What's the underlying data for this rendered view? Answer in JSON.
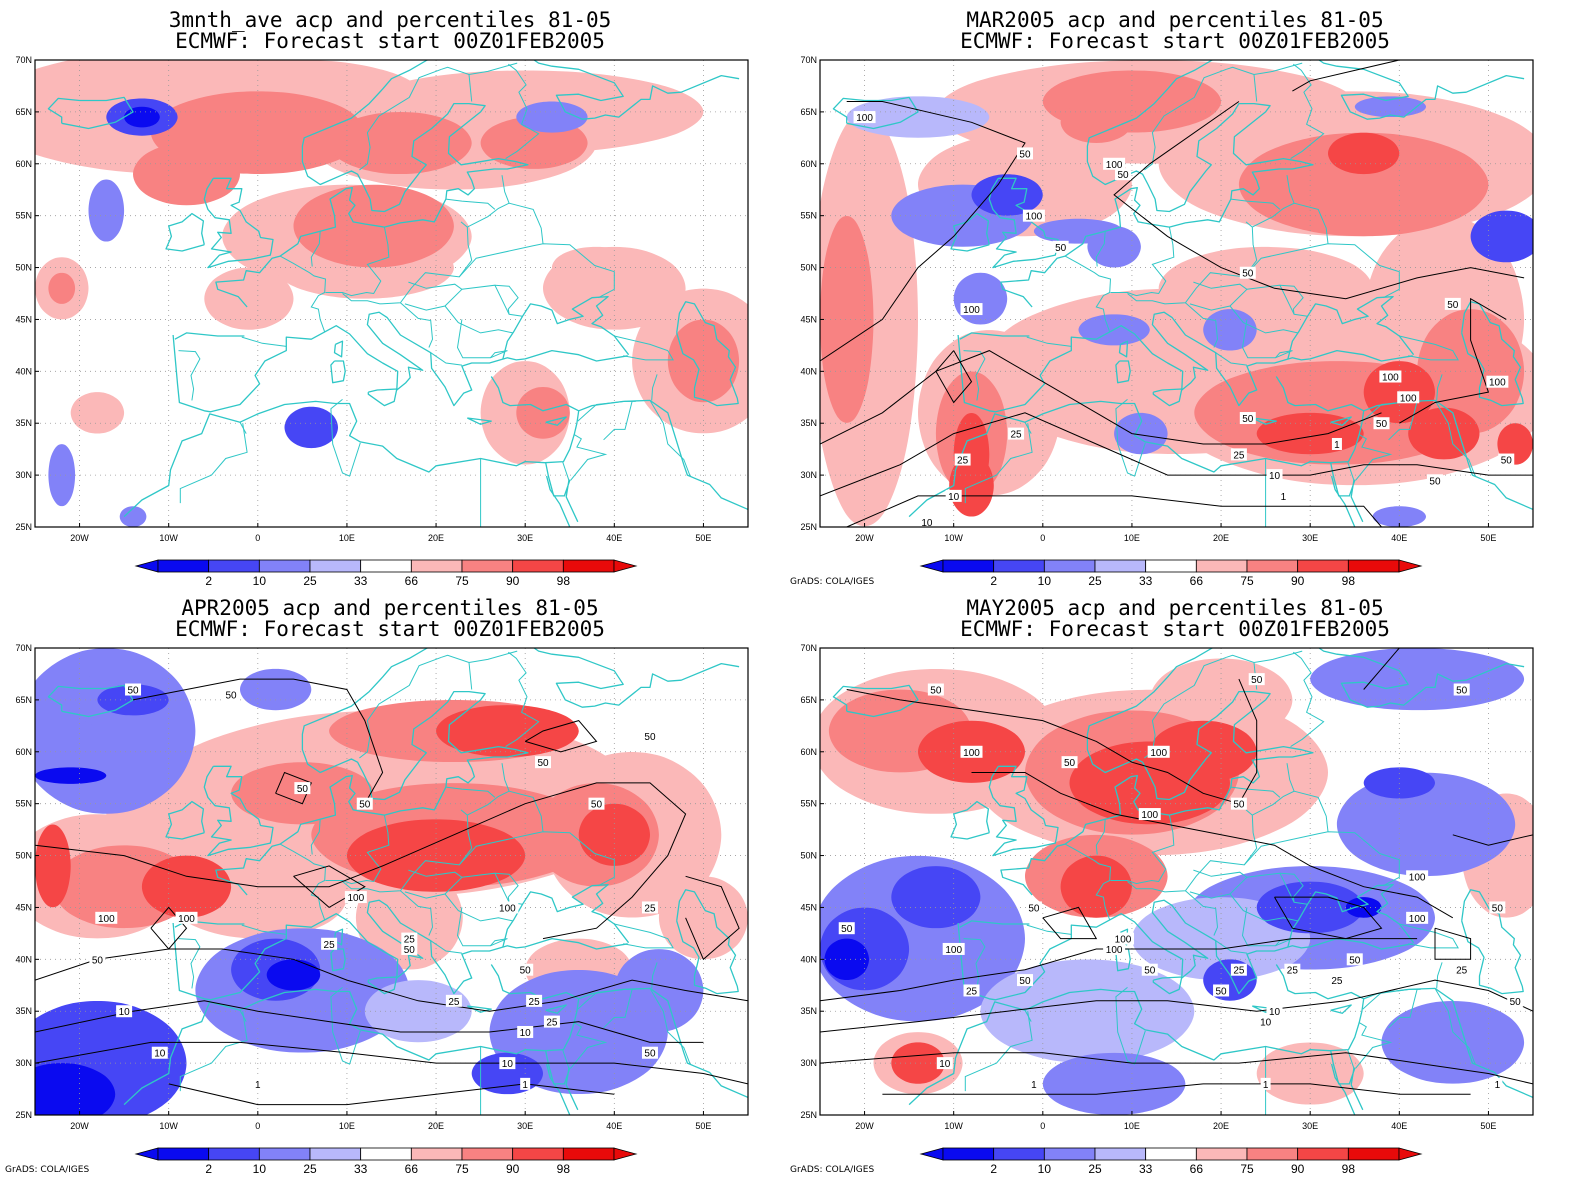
{
  "palette": {
    "p2": "#0a0af0",
    "p10": "#4646f5",
    "p25": "#8282f8",
    "p33": "#b8b8fb",
    "p66": "#fbb8b8",
    "p75": "#f88282",
    "p90": "#f54646",
    "p98": "#e80a0a",
    "coast": "#2fc7c7",
    "contour": "#000000",
    "grid": "#999999"
  },
  "colorbar_labels": [
    "2",
    "10",
    "25",
    "33",
    "66",
    "75",
    "90",
    "98"
  ],
  "lat_labels": [
    "70N",
    "65N",
    "60N",
    "55N",
    "50N",
    "45N",
    "40N",
    "35N",
    "30N",
    "25N"
  ],
  "lon_labels": [
    "20W",
    "10W",
    "0",
    "10E",
    "20E",
    "30E",
    "40E",
    "50E"
  ],
  "credit": "GrADS: COLA/IGES",
  "panels": [
    {
      "id": "3mnth",
      "title_line1": "3mnth_ave acp and percentiles 81-05",
      "title_line2": "ECMWF: Forecast start 00Z01FEB2005",
      "show_credit": false,
      "contour_labels": []
    },
    {
      "id": "mar",
      "title_line1": "MAR2005 acp and percentiles 81-05",
      "title_line2": "ECMWF: Forecast start 00Z01FEB2005",
      "show_credit": true,
      "contour_labels": [
        "100",
        "100",
        "100",
        "50",
        "50",
        "50",
        "50",
        "50",
        "100",
        "100",
        "100",
        "100",
        "50",
        "50",
        "50",
        "25",
        "25",
        "10",
        "10",
        "1",
        "25",
        "10",
        "1",
        "50"
      ]
    },
    {
      "id": "apr",
      "title_line1": "APR2005 acp and percentiles 81-05",
      "title_line2": "ECMWF: Forecast start 00Z01FEB2005",
      "show_credit": true,
      "contour_labels": [
        "50",
        "50",
        "50",
        "50",
        "50",
        "50",
        "50",
        "100",
        "100",
        "100",
        "100",
        "50",
        "25",
        "25",
        "50",
        "25",
        "50",
        "25",
        "25",
        "10",
        "10",
        "10",
        "10",
        "1",
        "1",
        "50",
        "25"
      ]
    },
    {
      "id": "may",
      "title_line1": "MAY2005 acp and percentiles 81-05",
      "title_line2": "ECMWF: Forecast start 00Z01FEB2005",
      "show_credit": true,
      "contour_labels": [
        "50",
        "50",
        "50",
        "100",
        "50",
        "100",
        "100",
        "50",
        "50",
        "100",
        "50",
        "100",
        "100",
        "100",
        "50",
        "25",
        "50",
        "25",
        "25",
        "50",
        "10",
        "10",
        "1",
        "1",
        "1",
        "25",
        "10",
        "50",
        "100",
        "25",
        "50",
        "50"
      ]
    }
  ]
}
